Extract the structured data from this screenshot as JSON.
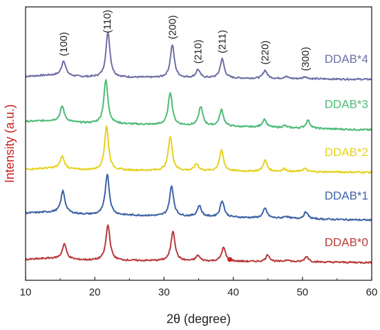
{
  "chart_data": {
    "type": "line",
    "title": "",
    "xlabel": "2θ (degree)",
    "ylabel": "Intensity (a.u.)",
    "xlim": [
      10,
      60
    ],
    "xticks": [
      10,
      20,
      30,
      40,
      50,
      60
    ],
    "ylim": [
      0,
      1
    ],
    "yticks_shown": false,
    "legend": "labels placed at right end of each curve",
    "colors": {
      "DDAB*4": "#6e6ea6",
      "DDAB*3": "#4dbb76",
      "DDAB*2": "#e5d21e",
      "DDAB*1": "#3d63a6",
      "DDAB*0": "#b83a3a",
      "ylabel": "#cc2222"
    },
    "peak_labels": [
      {
        "label": "(100)",
        "x": 15.5
      },
      {
        "label": "(110)",
        "x": 21.8
      },
      {
        "label": "(200)",
        "x": 31.2
      },
      {
        "label": "(210)",
        "x": 34.9
      },
      {
        "label": "(211)",
        "x": 38.4
      },
      {
        "label": "(220)",
        "x": 44.6
      },
      {
        "label": "(300)",
        "x": 50.4
      }
    ],
    "series": [
      {
        "name": "DDAB*4",
        "baseline": 0.745,
        "slope": -0.01,
        "peaks": [
          [
            15.5,
            0.055
          ],
          [
            21.9,
            0.165
          ],
          [
            31.2,
            0.12
          ],
          [
            34.9,
            0.03
          ],
          [
            38.4,
            0.07
          ],
          [
            44.6,
            0.03
          ],
          [
            47.6,
            0.008
          ],
          [
            50.4,
            0.008
          ]
        ]
      },
      {
        "name": "DDAB*3",
        "baseline": 0.58,
        "slope": -0.03,
        "peaks": [
          [
            15.3,
            0.055
          ],
          [
            21.6,
            0.16
          ],
          [
            30.9,
            0.12
          ],
          [
            35.3,
            0.07
          ],
          [
            38.3,
            0.06
          ],
          [
            44.5,
            0.03
          ],
          [
            47.4,
            0.008
          ],
          [
            50.8,
            0.03
          ]
        ]
      },
      {
        "name": "DDAB*2",
        "baseline": 0.405,
        "slope": -0.01,
        "peaks": [
          [
            15.3,
            0.045
          ],
          [
            21.7,
            0.16
          ],
          [
            30.9,
            0.125
          ],
          [
            34.7,
            0.025
          ],
          [
            38.3,
            0.075
          ],
          [
            44.6,
            0.04
          ],
          [
            47.4,
            0.01
          ],
          [
            50.3,
            0.012
          ]
        ]
      },
      {
        "name": "DDAB*1",
        "baseline": 0.245,
        "slope": -0.025,
        "peaks": [
          [
            15.4,
            0.08
          ],
          [
            21.8,
            0.15
          ],
          [
            31.1,
            0.11
          ],
          [
            35.1,
            0.04
          ],
          [
            38.4,
            0.06
          ],
          [
            44.6,
            0.035
          ],
          [
            47.6,
            0.008
          ],
          [
            50.5,
            0.025
          ]
        ]
      },
      {
        "name": "DDAB*0",
        "baseline": 0.075,
        "slope": -0.01,
        "peaks": [
          [
            15.6,
            0.055
          ],
          [
            21.9,
            0.13
          ],
          [
            31.3,
            0.11
          ],
          [
            34.9,
            0.02
          ],
          [
            38.6,
            0.05
          ],
          [
            45.0,
            0.025
          ],
          [
            47.8,
            0.008
          ],
          [
            50.6,
            0.02
          ]
        ]
      }
    ]
  }
}
